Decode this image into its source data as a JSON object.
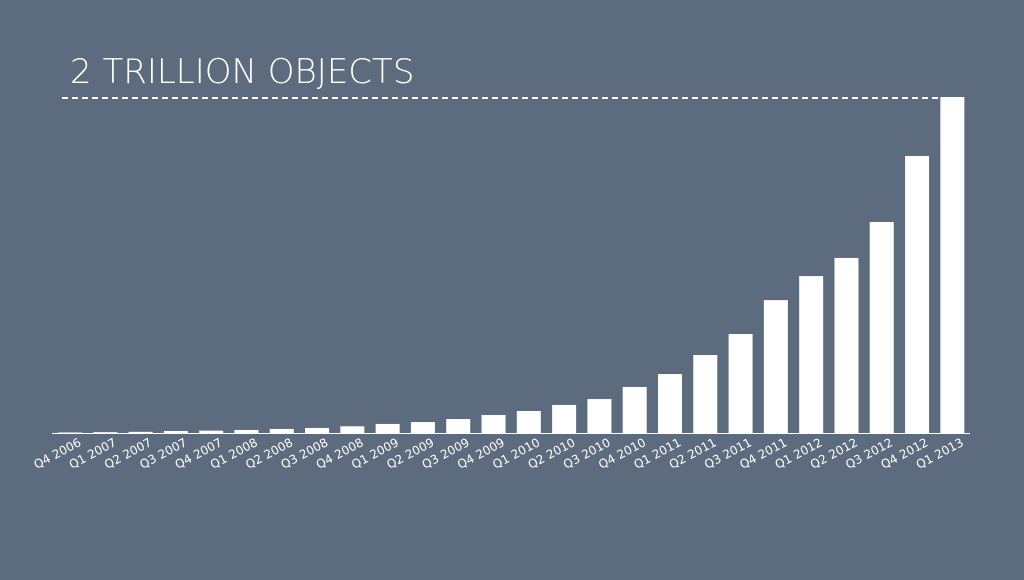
{
  "chart_data": {
    "type": "bar",
    "title": "2 TRILLION OBJECTS",
    "categories": [
      "Q4 2006",
      "Q1 2007",
      "Q2 2007",
      "Q3 2007",
      "Q4 2007",
      "Q1 2008",
      "Q2 2008",
      "Q3 2008",
      "Q4 2008",
      "Q1 2009",
      "Q2 2009",
      "Q3 2009",
      "Q4 2009",
      "Q1 2010",
      "Q2 2010",
      "Q3 2010",
      "Q4 2010",
      "Q1 2011",
      "Q2 2011",
      "Q3 2011",
      "Q4 2011",
      "Q1 2012",
      "Q2 2012",
      "Q3 2012",
      "Q4 2012",
      "Q1 2013"
    ],
    "values": [
      3,
      5,
      7,
      12,
      14,
      18,
      24,
      30,
      40,
      54,
      65,
      83,
      107,
      131,
      167,
      202,
      274,
      351,
      464,
      589,
      791,
      934,
      1042,
      1256,
      1649,
      2000
    ],
    "color": "#ffffff",
    "ylim": [
      0,
      2000
    ]
  }
}
